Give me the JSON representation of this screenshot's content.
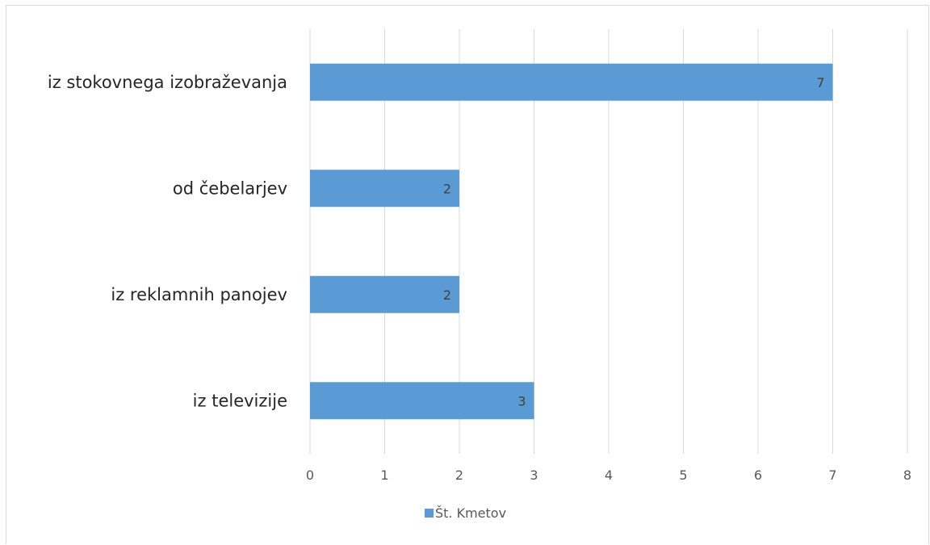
{
  "chart_data": {
    "type": "bar",
    "orientation": "horizontal",
    "categories": [
      "iz stokovnega izobraževanja",
      "od čebelarjev",
      "iz reklamnih panojev",
      "iz televizije"
    ],
    "series": [
      {
        "name": "Št. Kmetov",
        "values": [
          7,
          2,
          2,
          3
        ],
        "color": "#5b9bd5"
      }
    ],
    "xlim": [
      0,
      8
    ],
    "x_ticks": [
      "0",
      "1",
      "2",
      "3",
      "4",
      "5",
      "6",
      "7",
      "8"
    ],
    "grid": true,
    "data_labels": true,
    "legend_position": "bottom",
    "gridline_color": "#d9d9d9",
    "label_color": "#595959"
  }
}
